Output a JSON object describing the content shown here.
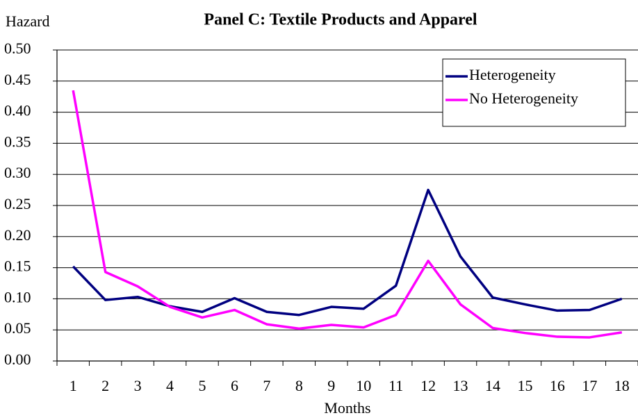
{
  "chart_data": {
    "type": "line",
    "title": "Panel C: Textile Products and Apparel",
    "y_label": "Hazard",
    "x_label": "Months",
    "categories": [
      "1",
      "2",
      "3",
      "4",
      "5",
      "6",
      "7",
      "8",
      "9",
      "10",
      "11",
      "12",
      "13",
      "14",
      "15",
      "16",
      "17",
      "18"
    ],
    "series": [
      {
        "name": "Heterogeneity",
        "color": "#000080",
        "values": [
          0.152,
          0.098,
          0.103,
          0.088,
          0.079,
          0.101,
          0.079,
          0.074,
          0.087,
          0.084,
          0.121,
          0.275,
          0.168,
          0.102,
          0.091,
          0.081,
          0.082,
          0.1
        ]
      },
      {
        "name": "No Heterogeneity",
        "color": "#ff00ff",
        "values": [
          0.435,
          0.143,
          0.12,
          0.087,
          0.07,
          0.082,
          0.059,
          0.052,
          0.058,
          0.054,
          0.074,
          0.161,
          0.091,
          0.053,
          0.045,
          0.039,
          0.038,
          0.046
        ]
      }
    ],
    "ylim": [
      0,
      0.5
    ],
    "yticks": [
      {
        "value": 0,
        "label": "0.00"
      },
      {
        "value": 0.05,
        "label": "0.05"
      },
      {
        "value": 0.1,
        "label": "0.10"
      },
      {
        "value": 0.15,
        "label": "0.15"
      },
      {
        "value": 0.2,
        "label": "0.20"
      },
      {
        "value": 0.25,
        "label": "0.25"
      },
      {
        "value": 0.3,
        "label": "0.30"
      },
      {
        "value": 0.35,
        "label": "0.35"
      },
      {
        "value": 0.4,
        "label": "0.40"
      },
      {
        "value": 0.45,
        "label": "0.45"
      },
      {
        "value": 0.5,
        "label": "0.50"
      }
    ],
    "grid": true,
    "legend": "upper right"
  }
}
